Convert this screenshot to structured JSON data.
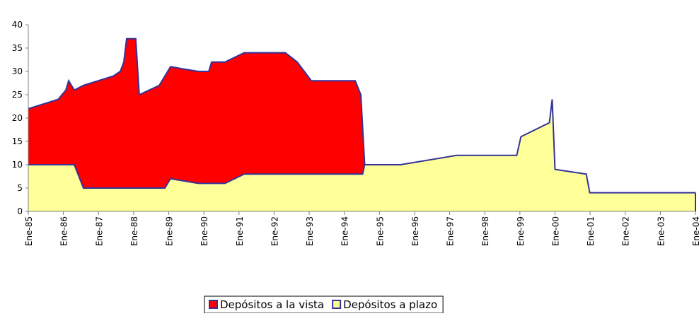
{
  "chart_data": {
    "type": "area",
    "series": [
      {
        "name": "Depósitos a la vista",
        "color": "#ff0000",
        "x": [
          1985.0,
          1985.85,
          1986.07,
          1986.15,
          1986.31,
          1986.57,
          1987.42,
          1987.62,
          1987.72,
          1987.8,
          1988.06,
          1988.16,
          1988.73,
          1989.05,
          1989.84,
          1990.14,
          1990.22,
          1990.6,
          1991.15,
          1992.32,
          1992.66,
          1993.06,
          1994.31,
          1994.47,
          1994.58
        ],
        "values": [
          22,
          24,
          26,
          28,
          26,
          27,
          29,
          30,
          32,
          37,
          37,
          25,
          27,
          31,
          30,
          30,
          32,
          32,
          34,
          34,
          32,
          28,
          28,
          25,
          10
        ]
      },
      {
        "name": "Depósitos a plazo",
        "color": "#ffff99",
        "x": [
          1985.0,
          1986.31,
          1986.57,
          1988.89,
          1989.05,
          1989.84,
          1990.6,
          1991.15,
          1994.52,
          1994.58,
          1995.6,
          1997.2,
          1998.91,
          1999.03,
          1999.84,
          1999.92,
          2000.0,
          2000.89,
          2000.99,
          2004.0
        ],
        "values": [
          10,
          10,
          5,
          5,
          7,
          6,
          6,
          8,
          8,
          10,
          10,
          12,
          12,
          16,
          19,
          24,
          9,
          8,
          4,
          4
        ]
      }
    ],
    "line_color": "#333399",
    "xlim": [
      1985,
      2004
    ],
    "xticks": [
      {
        "value": 1985,
        "label": "Ene-85"
      },
      {
        "value": 1986,
        "label": "Ene-86"
      },
      {
        "value": 1987,
        "label": "Ene-87"
      },
      {
        "value": 1988,
        "label": "Ene-88"
      },
      {
        "value": 1989,
        "label": "Ene-89"
      },
      {
        "value": 1990,
        "label": "Ene-90"
      },
      {
        "value": 1991,
        "label": "Ene-91"
      },
      {
        "value": 1992,
        "label": "Ene-92"
      },
      {
        "value": 1993,
        "label": "Ene-93"
      },
      {
        "value": 1994,
        "label": "Ene-94"
      },
      {
        "value": 1995,
        "label": "Ene-95"
      },
      {
        "value": 1996,
        "label": "Ene-96"
      },
      {
        "value": 1997,
        "label": "Ene-97"
      },
      {
        "value": 1998,
        "label": "Ene-98"
      },
      {
        "value": 1999,
        "label": "Ene-99"
      },
      {
        "value": 2000,
        "label": "Ene-00"
      },
      {
        "value": 2001,
        "label": "Ene-01"
      },
      {
        "value": 2002,
        "label": "Ene-02"
      },
      {
        "value": 2003,
        "label": "Ene-03"
      },
      {
        "value": 2004,
        "label": "Ene-04"
      }
    ],
    "ylim": [
      0,
      40
    ],
    "yticks": [
      0,
      5,
      10,
      15,
      20,
      25,
      30,
      35,
      40
    ],
    "legend": "bottom"
  }
}
